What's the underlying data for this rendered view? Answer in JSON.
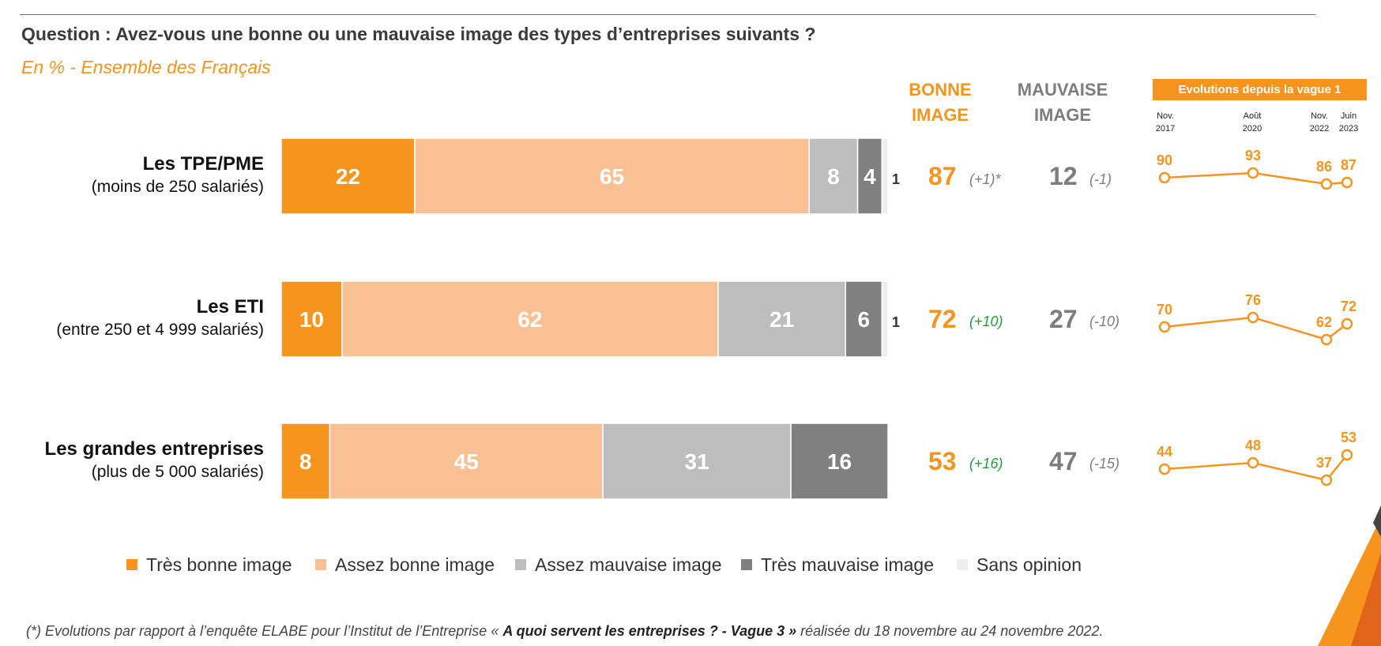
{
  "question": "Question : Avez-vous une bonne ou une mauvaise image des types d’entreprises suivants ?",
  "subtitle": "En % - Ensemble des Français",
  "headers": {
    "good_line1": "BONNE",
    "good_line2": "IMAGE",
    "bad_line1": "MAUVAISE",
    "bad_line2": "IMAGE",
    "evolution": "Evolutions depuis la vague 1"
  },
  "evolution_dates": [
    {
      "line1": "Nov.",
      "line2": "2017"
    },
    {
      "line1": "Août",
      "line2": "2020"
    },
    {
      "line1": "Nov.",
      "line2": "2022"
    },
    {
      "line1": "Juin",
      "line2": "2023"
    }
  ],
  "rows": [
    {
      "name": "Les TPE/PME",
      "sub": "(moins de 250 salariés)",
      "good": "87",
      "good_delta": "(+1)*",
      "bad": "12",
      "bad_delta": "(-1)"
    },
    {
      "name": "Les ETI",
      "sub": "(entre 250 et 4 999 salariés)",
      "good": "72",
      "good_delta": "(+10)",
      "bad": "27",
      "bad_delta": "(-10)"
    },
    {
      "name": "Les grandes entreprises",
      "sub": "(plus de 5 000 salariés)",
      "good": "53",
      "good_delta": "(+16)",
      "bad": "47",
      "bad_delta": "(-15)"
    }
  ],
  "legend": [
    "Très bonne image",
    "Assez bonne image",
    "Assez mauvaise image",
    "Très mauvaise image",
    "Sans opinion"
  ],
  "footnote_prefix": "(*) Evolutions par rapport à l’enquête ELABE pour l’Institut de l’Entreprise « ",
  "footnote_bold": "A quoi servent les entreprises ? - Vague 3 »",
  "footnote_suffix": " réalisée du 18 novembre au 24 novembre 2022.",
  "colors": {
    "tres_bonne": "#f7941d",
    "assez_bonne": "#f9c094",
    "assez_mauvaise": "#bdbdbd",
    "tres_mauvaise": "#808080",
    "sans_opinion": "#eeeeee",
    "orange": "#f7941d",
    "grey_text": "#7d7d7d",
    "delta_pos": "#1e9e3a"
  },
  "chart_data": [
    {
      "type": "bar",
      "orientation": "horizontal-stacked",
      "categories": [
        "Les TPE/PME",
        "Les ETI",
        "Les grandes entreprises"
      ],
      "series": [
        {
          "name": "Très bonne image",
          "values": [
            22,
            10,
            8
          ]
        },
        {
          "name": "Assez bonne image",
          "values": [
            65,
            62,
            45
          ]
        },
        {
          "name": "Assez mauvaise image",
          "values": [
            8,
            21,
            31
          ]
        },
        {
          "name": "Très mauvaise image",
          "values": [
            4,
            6,
            16
          ]
        },
        {
          "name": "Sans opinion",
          "values": [
            1,
            1,
            0
          ]
        }
      ],
      "xlim": [
        0,
        100
      ],
      "legend_position": "bottom"
    },
    {
      "type": "line",
      "title": "Evolutions depuis la vague 1",
      "x": [
        "Nov. 2017",
        "Août 2020",
        "Nov. 2022",
        "Juin 2023"
      ],
      "series": [
        {
          "name": "Les TPE/PME",
          "values": [
            90,
            93,
            86,
            87
          ]
        },
        {
          "name": "Les ETI",
          "values": [
            70,
            76,
            62,
            72
          ]
        },
        {
          "name": "Les grandes entreprises",
          "values": [
            44,
            48,
            37,
            53
          ]
        }
      ]
    }
  ]
}
